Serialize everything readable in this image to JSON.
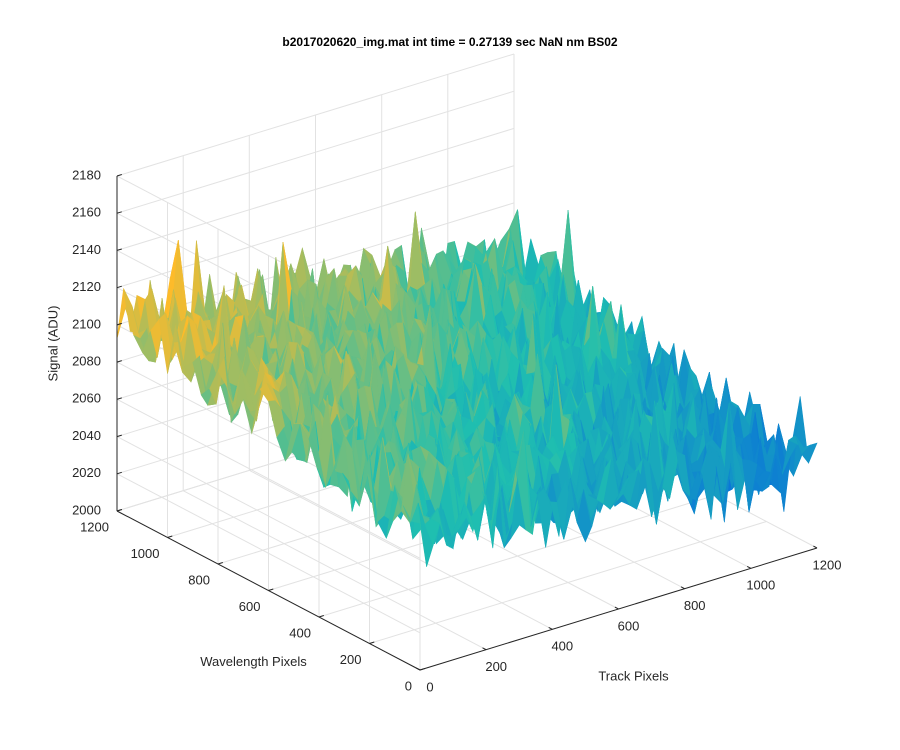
{
  "chart_data": {
    "type": "surface",
    "title": "b2017020620_img.mat int time = 0.27139 sec  NaN nm BS02",
    "xlabel": "Track Pixels",
    "ylabel": "Wavelength Pixels",
    "zlabel": "Signal (ADU)",
    "xlim": [
      0,
      1200
    ],
    "ylim": [
      0,
      1200
    ],
    "zlim": [
      2000,
      2180
    ],
    "x_ticks": [
      "0",
      "200",
      "400",
      "600",
      "800",
      "1000",
      "1200"
    ],
    "y_ticks": [
      "0",
      "200",
      "400",
      "600",
      "800",
      "1000",
      "1200"
    ],
    "z_ticks": [
      "2000",
      "2020",
      "2040",
      "2060",
      "2080",
      "2100",
      "2120",
      "2140",
      "2160",
      "2180"
    ],
    "grid": true,
    "colormap": "parula",
    "surface_trend": {
      "corners": {
        "track_0_wavelength_0": 2075,
        "track_0_wavelength_1200": 2105,
        "track_1200_wavelength_0": 2040,
        "track_1200_wavelength_1200": 2075
      },
      "noise_amplitude": 20
    },
    "colors": {
      "grid": "#e2e2e2",
      "axis": "#262626",
      "low": "#0a72d9",
      "mid": "#1fbfb0",
      "high": "#fdbb2a"
    }
  }
}
